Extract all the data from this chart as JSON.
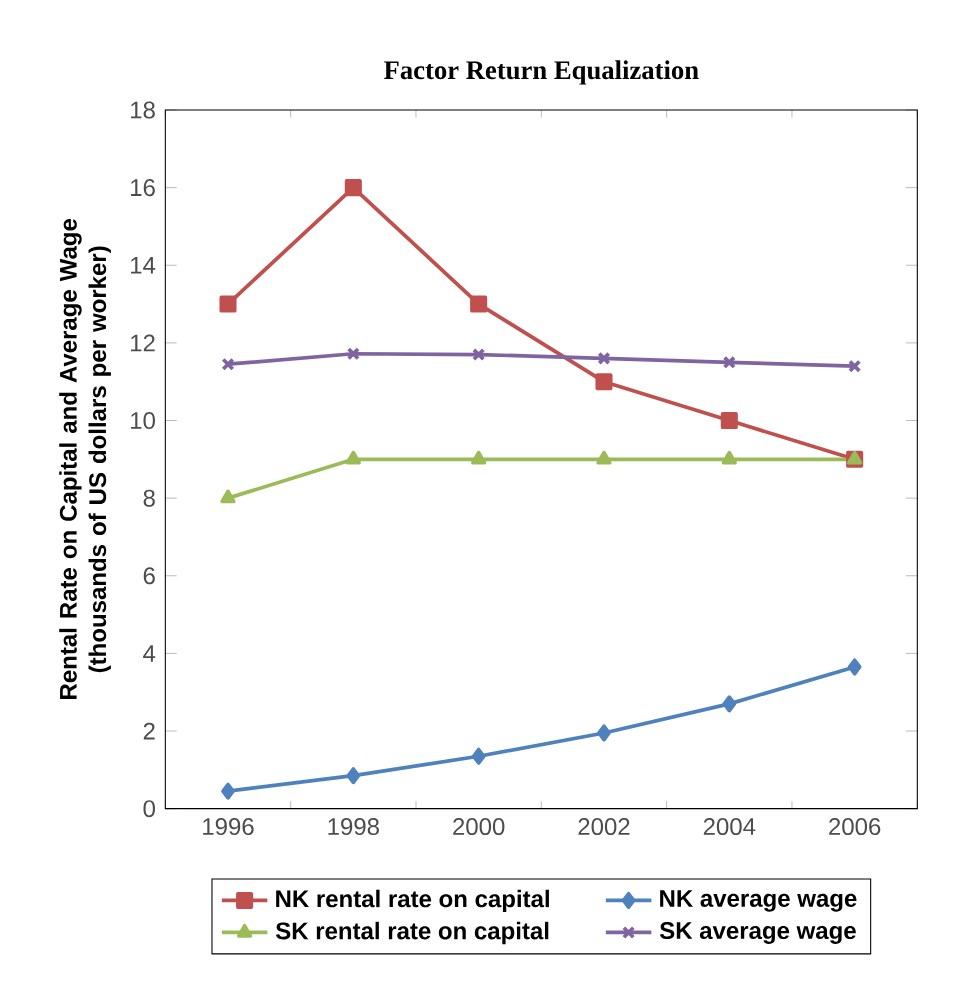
{
  "chart_data": {
    "type": "line",
    "title": "Factor Return Equalization",
    "ylabel": "Rental Rate on Capital and Average Wage (thousands of US dollars per worker)",
    "categories": [
      "1996",
      "1998",
      "2000",
      "2002",
      "2004",
      "2006"
    ],
    "ylim": [
      0,
      18
    ],
    "yticks": [
      0,
      2,
      4,
      6,
      8,
      10,
      12,
      14,
      16,
      18
    ],
    "grid": false,
    "legend": "bottom",
    "series": [
      {
        "name": "NK rental rate on capital",
        "color": "#c0504d",
        "marker": "square",
        "values": [
          13,
          16,
          13,
          11,
          10,
          9
        ]
      },
      {
        "name": "NK average wage",
        "color": "#4f81bd",
        "marker": "diamond",
        "values": [
          0.45,
          0.85,
          1.35,
          1.95,
          2.7,
          3.65
        ]
      },
      {
        "name": "SK rental rate on capital",
        "color": "#9bbb59",
        "marker": "triangle",
        "values": [
          8,
          9,
          9,
          9,
          9,
          9
        ]
      },
      {
        "name": "SK average wage",
        "color": "#8064a2",
        "marker": "cross",
        "values": [
          11.45,
          11.72,
          11.7,
          11.6,
          11.5,
          11.4
        ]
      }
    ]
  }
}
